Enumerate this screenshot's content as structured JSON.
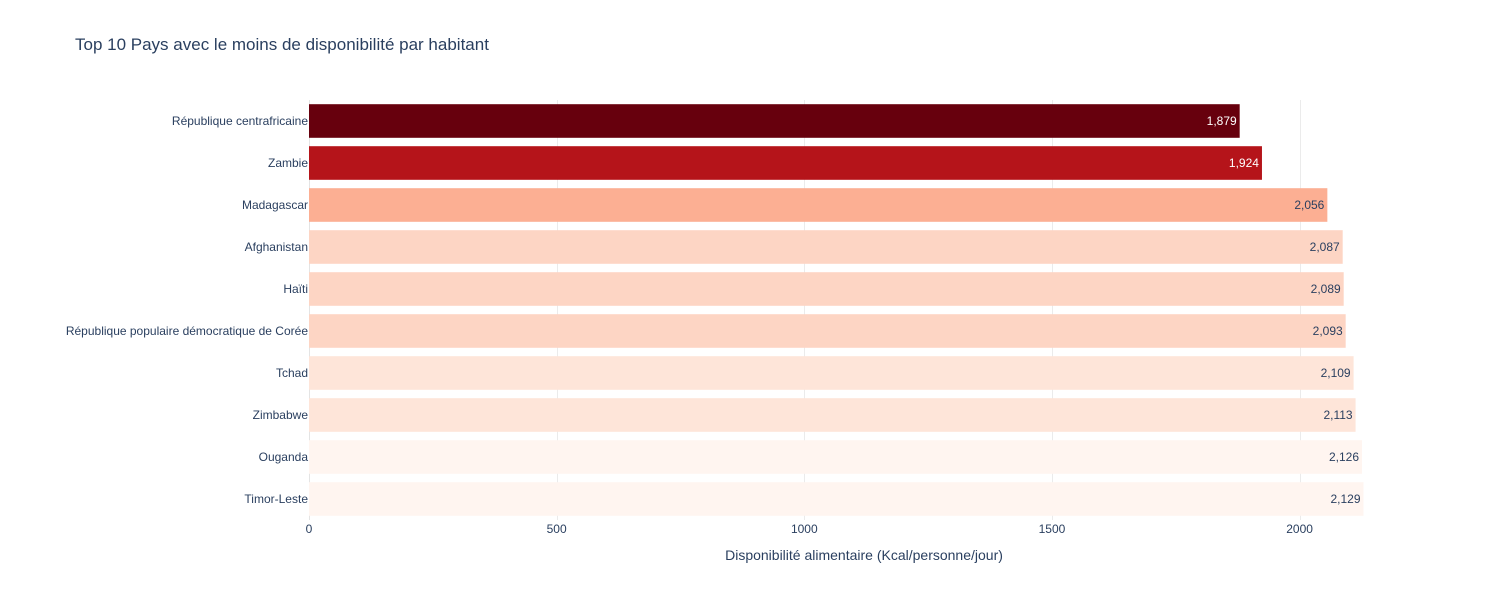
{
  "chart_data": {
    "type": "bar",
    "orientation": "horizontal",
    "title": "Top 10 Pays avec le moins de disponibilité par habitant",
    "xlabel": "Disponibilité alimentaire (Kcal/personne/jour)",
    "ylabel": "",
    "xlim": [
      0,
      2130
    ],
    "xticks": [
      0,
      500,
      1000,
      1500,
      2000
    ],
    "xtick_labels": [
      "0",
      "500",
      "1000",
      "1500",
      "2000"
    ],
    "grid": true,
    "legend": "none",
    "categories": [
      "République centrafricaine",
      "Zambie",
      "Madagascar",
      "Afghanistan",
      "Haïti",
      "République populaire démocratique de Corée",
      "Tchad",
      "Zimbabwe",
      "Ouganda",
      "Timor-Leste"
    ],
    "values": [
      1879,
      1924,
      2056,
      2087,
      2089,
      2093,
      2109,
      2113,
      2126,
      2129
    ],
    "value_labels": [
      "1,879",
      "1,924",
      "2,056",
      "2,087",
      "2,089",
      "2,093",
      "2,109",
      "2,113",
      "2,126",
      "2,129"
    ],
    "colors": [
      "#67000d",
      "#b5141a",
      "#fcaf93",
      "#fdd5c4",
      "#fdd5c4",
      "#fdd5c4",
      "#fee5d9",
      "#fee5d9",
      "#fff5f0",
      "#fff5f0"
    ],
    "label_colors": [
      "#ffffff",
      "#ffffff",
      "#2a3f5f",
      "#2a3f5f",
      "#2a3f5f",
      "#2a3f5f",
      "#2a3f5f",
      "#2a3f5f",
      "#2a3f5f",
      "#2a3f5f"
    ]
  }
}
